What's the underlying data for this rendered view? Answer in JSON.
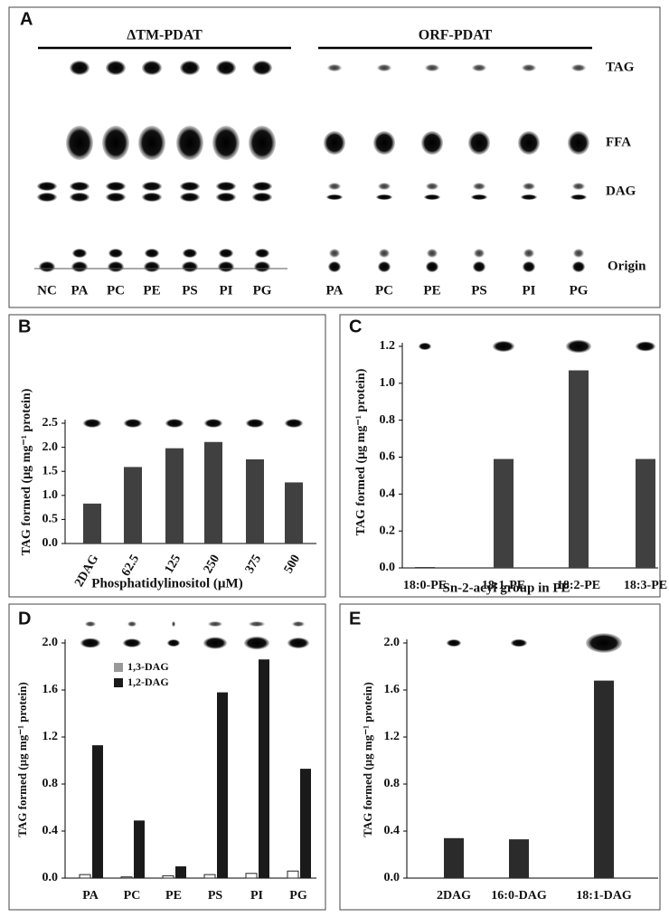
{
  "tlc": {
    "panel": "A",
    "groups": [
      {
        "name": "ΔTM-PDAT",
        "lanes": [
          "NC",
          "PA",
          "PC",
          "PE",
          "PS",
          "PI",
          "PG"
        ]
      },
      {
        "name": "ORF-PDAT",
        "lanes": [
          "PA",
          "PC",
          "PE",
          "PS",
          "PI",
          "PG"
        ]
      }
    ],
    "bands": [
      "TAG",
      "FFA",
      "DAG",
      "Origin"
    ]
  },
  "chart_data": [
    {
      "type": "bar",
      "panel": "B",
      "ylabel": "TAG formed (µg mg⁻¹ protein)",
      "xlabel": "Phosphatidylinositol (µM)",
      "categories": [
        "2DAG",
        "62.5",
        "125",
        "250",
        "375",
        "500"
      ],
      "values": [
        0.83,
        1.59,
        1.98,
        2.11,
        1.75,
        1.27
      ],
      "color": "#404040",
      "ylim": [
        0,
        2.5
      ],
      "yticks": [
        {
          "value": 0,
          "label": "0.0"
        },
        0.5,
        {
          "value": 1,
          "label": "1.0"
        },
        1.5,
        {
          "value": 2,
          "label": "2.0"
        },
        2.5
      ]
    },
    {
      "type": "bar",
      "panel": "C",
      "ylabel": "TAG formed (µg mg⁻¹ protein)",
      "xlabel": "Sn-2-acyl group in PE",
      "categories": [
        "18:0-PE",
        "18:1-PE",
        "18:2-PE",
        "18:3-PE"
      ],
      "values": [
        0.005,
        0.59,
        1.07,
        0.59
      ],
      "color": "#404040",
      "ylim": [
        0,
        1.2
      ],
      "yticks": [
        {
          "value": 0,
          "label": "0.0"
        },
        0.2,
        0.4,
        0.6,
        0.8,
        {
          "value": 1,
          "label": "1.0"
        },
        1.2
      ]
    },
    {
      "type": "grouped_bar",
      "panel": "D",
      "ylabel": "TAG formed (µg mg⁻¹ protein)",
      "categories": [
        "PA",
        "PC",
        "PE",
        "PS",
        "PI",
        "PG"
      ],
      "series": [
        {
          "name": "1,3-DAG",
          "color": "#ffffff",
          "values": [
            0.03,
            0.01,
            0.02,
            0.03,
            0.04,
            0.06
          ]
        },
        {
          "name": "1,2-DAG",
          "color": "#1a1a1a",
          "values": [
            1.13,
            0.49,
            0.1,
            1.58,
            1.86,
            0.93
          ]
        }
      ],
      "ylim": [
        0,
        2
      ],
      "yticks": [
        {
          "value": 0,
          "label": "0.0"
        },
        0.4,
        0.8,
        1.2,
        1.6,
        {
          "value": 2,
          "label": "2.0"
        }
      ]
    },
    {
      "type": "bar",
      "panel": "E",
      "ylabel": "TAG formed (µg mg⁻¹ protein)",
      "categories": [
        "2DAG",
        "16:0-DAG",
        "18:1-DAG"
      ],
      "values": [
        0.34,
        0.33,
        1.68
      ],
      "color": "#2b2b2b",
      "ylim": [
        0,
        2
      ],
      "yticks": [
        {
          "value": 0,
          "label": "0.0"
        },
        0.4,
        0.8,
        1.2,
        1.6,
        {
          "value": 2,
          "label": "2.0"
        }
      ]
    }
  ]
}
